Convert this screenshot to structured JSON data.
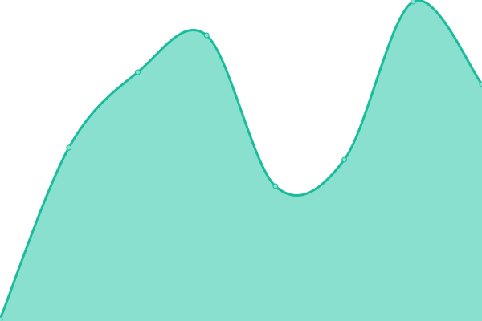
{
  "chart_data": {
    "type": "area",
    "title": "",
    "xlabel": "",
    "ylabel": "",
    "x": [
      0,
      1,
      2,
      3,
      4,
      5,
      6,
      7
    ],
    "series": [
      {
        "values": [
          2,
          216,
          310,
          356,
          168,
          201,
          398,
          295
        ]
      }
    ],
    "ylim": [
      0,
      400
    ],
    "grid": false,
    "smooth": true,
    "colors": {
      "line": "#1abc9c",
      "fill": "#8ae0cf",
      "marker_fill": "#8ae0cf"
    }
  }
}
